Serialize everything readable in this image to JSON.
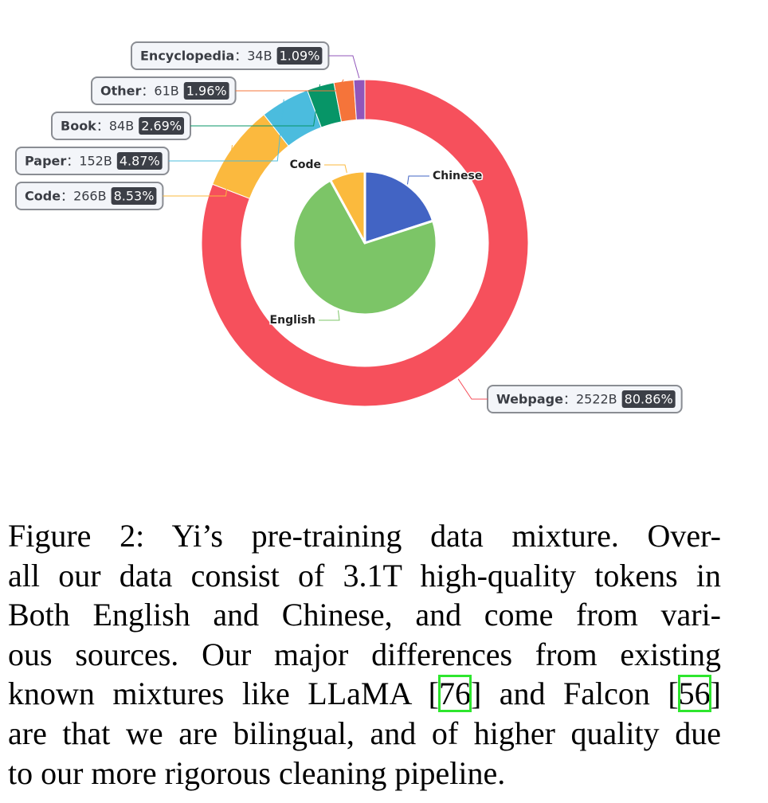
{
  "chart_data": [
    {
      "type": "donut",
      "categories": [
        "Webpage",
        "Code",
        "Paper",
        "Book",
        "Other",
        "Encyclopedia"
      ],
      "values": [
        2522,
        266,
        152,
        84,
        61,
        34
      ],
      "value_labels": [
        "2522B",
        "266B",
        "152B",
        "84B",
        "61B",
        "34B"
      ],
      "percents": [
        80.86,
        8.53,
        4.87,
        2.69,
        1.96,
        1.09
      ],
      "percent_labels": [
        "80.86%",
        "8.53%",
        "4.87%",
        "2.69%",
        "1.96%",
        "1.09%"
      ],
      "label_separator": "：",
      "colors": [
        "#f6505c",
        "#fbb93e",
        "#4bbcde",
        "#079567",
        "#f5743a",
        "#9156ba"
      ]
    },
    {
      "type": "pie",
      "categories": [
        "Chinese",
        "English",
        "Code"
      ],
      "values": [
        20,
        72,
        8
      ],
      "colors": [
        "#4264c4",
        "#7cc567",
        "#fbba3d"
      ]
    }
  ],
  "caption": {
    "lines": [
      "Figure 2:  Yi’s pre-training data mixture.  Over-",
      "all our data consist of 3.1T high-quality tokens in",
      "Both English and Chinese, and come from vari-",
      "ous sources. Our major differences from existing",
      [
        "known mixtures like LLaMA [",
        {
          "cite": "76"
        },
        "] and Falcon [",
        {
          "cite": "56"
        },
        "]"
      ],
      "are that we are bilingual, and of higher quality due",
      "to our more rigorous cleaning pipeline."
    ]
  }
}
